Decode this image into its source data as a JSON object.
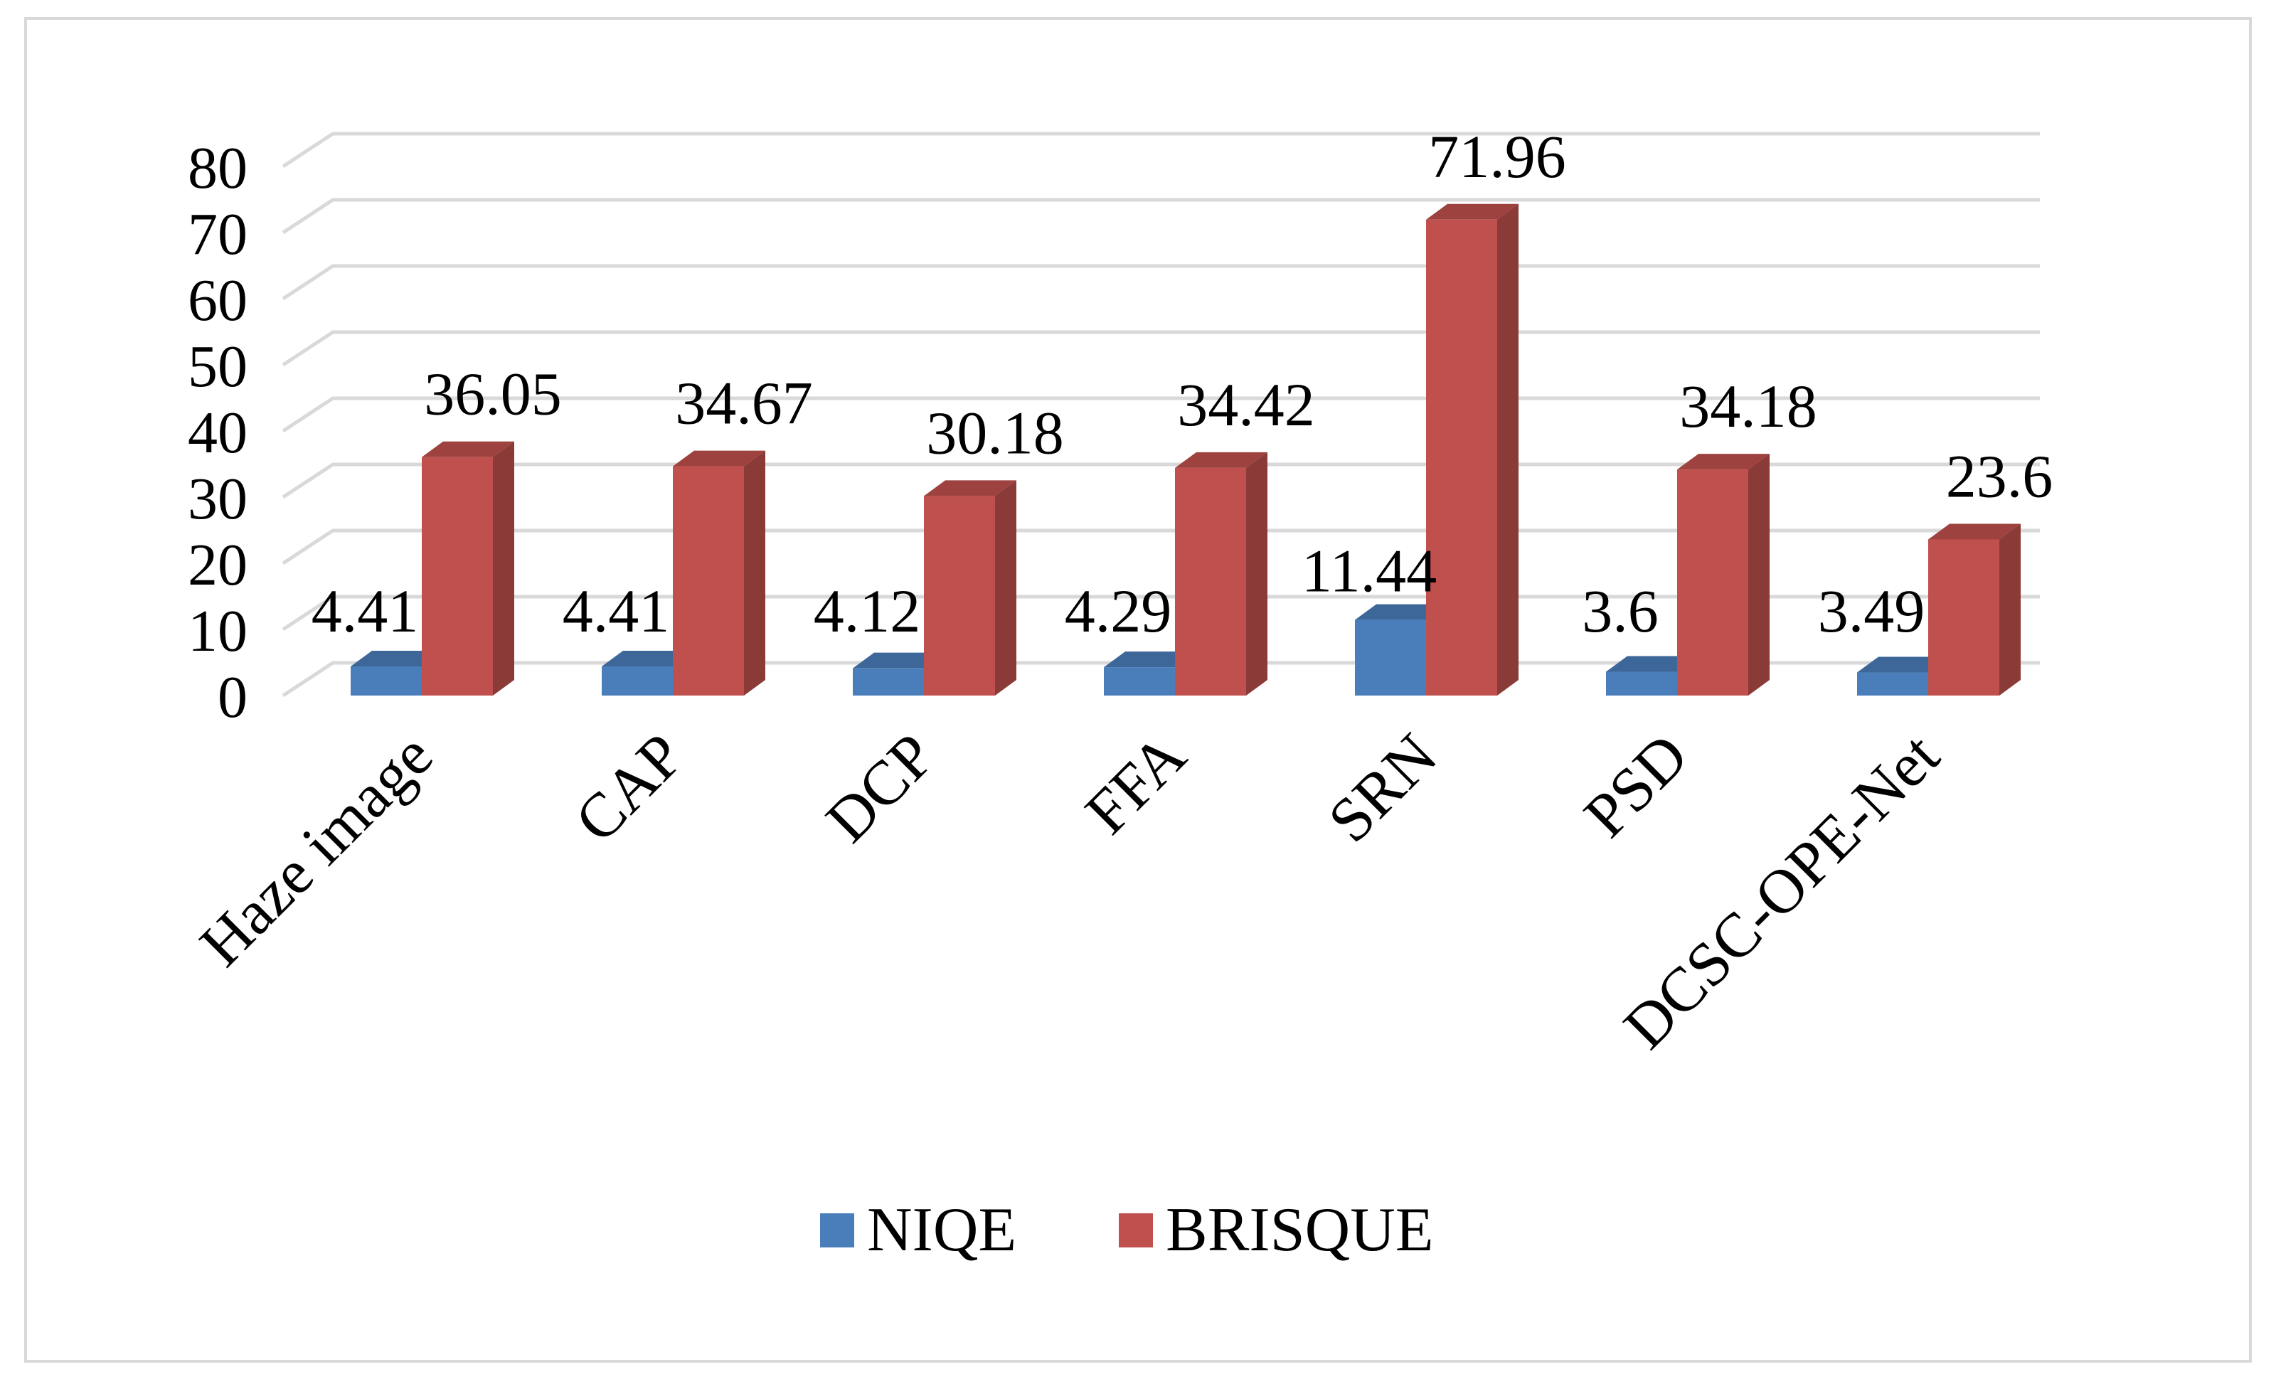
{
  "chart_data": {
    "type": "bar",
    "style": "3d-clustered-column",
    "title": "",
    "xlabel": "",
    "ylabel": "",
    "categories": [
      "Haze image",
      "CAP",
      "DCP",
      "FFA",
      "SRN",
      "PSD",
      "DCSC-OPE-Net"
    ],
    "series": [
      {
        "name": "NIQE",
        "color": "#4a7ebb",
        "values": [
          4.41,
          4.41,
          4.12,
          4.29,
          11.44,
          3.6,
          3.49
        ],
        "labels": [
          "4.41",
          "4.41",
          "4.12",
          "4.29",
          "11.44",
          "3.6",
          "3.49"
        ]
      },
      {
        "name": "BRISQUE",
        "color": "#c0504d",
        "values": [
          36.05,
          34.67,
          30.18,
          34.42,
          71.96,
          34.18,
          23.6
        ],
        "labels": [
          "36.05",
          "34.67",
          "30.18",
          "34.42",
          "71.96",
          "34.18",
          "23.6"
        ]
      }
    ],
    "y_ticks": [
      "0",
      "10",
      "20",
      "30",
      "40",
      "50",
      "60",
      "70",
      "80"
    ],
    "ylim": [
      0,
      80
    ],
    "grid": true,
    "legend": "bottom"
  }
}
